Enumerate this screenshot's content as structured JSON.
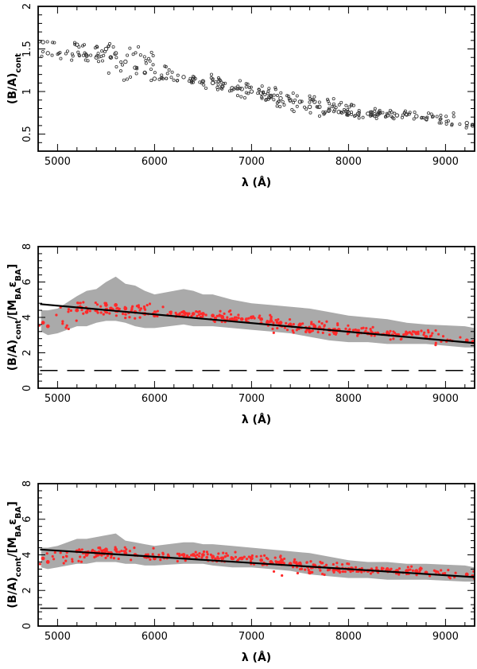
{
  "chart_data": [
    {
      "type": "scatter",
      "xlabel": "λ (Å)",
      "ylabel": "(B/A)cont",
      "ylabel_main": "(B/A)",
      "ylabel_sub": "cont",
      "xlim": [
        4800,
        9300
      ],
      "ylim": [
        0.3,
        2.0
      ],
      "xticks": [
        5000,
        6000,
        7000,
        8000,
        9000
      ],
      "yticks": [
        0.5,
        1,
        1.5,
        2
      ],
      "ytick_labels": [
        "0.5",
        "1",
        "1.5",
        "2"
      ],
      "series": [
        {
          "name": "(B/A)cont",
          "style": "open-circles",
          "color": "#333333",
          "x": [
            4850,
            4900,
            5200,
            5300,
            5400,
            5500,
            5550,
            5600,
            5700,
            5800,
            5900,
            6000,
            6300,
            6400,
            6500,
            6600,
            6700,
            6800,
            6900,
            7000,
            7100,
            7200,
            7300,
            7400,
            7500,
            7600,
            7650,
            7700,
            7800,
            7900,
            8000,
            8100,
            8200,
            8300,
            8400,
            8500,
            8600,
            8700,
            8800,
            9220,
            9280
          ],
          "y": [
            1.58,
            1.45,
            1.55,
            1.42,
            1.4,
            1.5,
            1.4,
            1.45,
            1.35,
            1.28,
            1.22,
            1.15,
            1.17,
            1.14,
            1.12,
            1.1,
            1.06,
            1.04,
            1.03,
            1.0,
            0.98,
            0.95,
            0.92,
            0.9,
            0.88,
            0.82,
            0.88,
            0.82,
            0.78,
            0.76,
            0.75,
            0.74,
            0.74,
            0.73,
            0.72,
            0.72,
            0.73,
            0.71,
            0.68,
            0.63,
            0.6
          ]
        }
      ]
    },
    {
      "type": "scatter",
      "xlabel": "λ (Å)",
      "ylabel": "(B/A)cont/[MBA εBA]",
      "ylabel_main": "(B/A)",
      "ylabel_sub": "cont",
      "ylabel_rest": "/[M",
      "ylabel_sub2": "BA",
      "ylabel_eps": "ε",
      "ylabel_sub3": "BA",
      "ylabel_end": "]",
      "xlim": [
        4800,
        9300
      ],
      "ylim": [
        0,
        8
      ],
      "xticks": [
        5000,
        6000,
        7000,
        8000,
        9000
      ],
      "yticks": [
        0,
        2,
        4,
        6,
        8
      ],
      "ytick_labels": [
        "0",
        "2",
        "4",
        "6",
        "8"
      ],
      "series": [
        {
          "name": "data",
          "style": "red-points",
          "color": "#ff2a2a",
          "x": [
            4850,
            4900,
            5200,
            5300,
            5400,
            5500,
            5550,
            5600,
            5700,
            5800,
            5900,
            6000,
            6300,
            6400,
            6500,
            6600,
            6700,
            6800,
            6900,
            7000,
            7100,
            7200,
            7300,
            7400,
            7500,
            7600,
            7650,
            7700,
            7800,
            7900,
            8000,
            8100,
            8200,
            8300,
            8400,
            8500,
            8600,
            8700,
            8800,
            9220,
            9280
          ],
          "y": [
            3.7,
            3.5,
            4.4,
            4.3,
            4.4,
            4.7,
            4.5,
            4.7,
            4.5,
            4.3,
            4.2,
            4.1,
            4.3,
            4.2,
            4.2,
            4.1,
            4.0,
            3.9,
            3.9,
            4.0,
            3.9,
            3.8,
            3.7,
            3.6,
            3.6,
            3.2,
            3.5,
            3.4,
            3.3,
            3.3,
            3.2,
            3.1,
            3.1,
            3.1,
            3.1,
            3.0,
            3.1,
            3.1,
            2.9,
            2.7,
            2.6
          ]
        },
        {
          "name": "uncertainty band",
          "style": "grey-band",
          "color": "#aaaaaa",
          "x": [
            4830,
            4900,
            5000,
            5200,
            5300,
            5400,
            5500,
            5600,
            5700,
            5800,
            5900,
            6000,
            6300,
            6400,
            6500,
            6600,
            6800,
            7000,
            7200,
            7400,
            7600,
            7800,
            8000,
            8200,
            8400,
            8600,
            8800,
            9200,
            9300
          ],
          "low": [
            3.2,
            3.0,
            3.1,
            3.5,
            3.5,
            3.7,
            3.8,
            3.8,
            3.7,
            3.5,
            3.4,
            3.4,
            3.6,
            3.5,
            3.5,
            3.5,
            3.4,
            3.3,
            3.2,
            3.1,
            2.9,
            2.7,
            2.6,
            2.6,
            2.5,
            2.5,
            2.5,
            2.3,
            2.3
          ],
          "high": [
            4.4,
            4.4,
            4.5,
            5.2,
            5.5,
            5.6,
            6.0,
            6.3,
            5.9,
            5.8,
            5.5,
            5.3,
            5.6,
            5.5,
            5.3,
            5.3,
            5.0,
            4.8,
            4.7,
            4.6,
            4.5,
            4.3,
            4.1,
            4.0,
            3.9,
            3.7,
            3.6,
            3.5,
            3.4
          ]
        },
        {
          "name": "fit",
          "style": "line",
          "color": "#000000",
          "x": [
            4820,
            9300
          ],
          "y": [
            4.75,
            2.55
          ]
        },
        {
          "name": "reference",
          "style": "dashed",
          "color": "#000000",
          "x": [
            4820,
            9300
          ],
          "y": [
            1,
            1
          ]
        }
      ]
    },
    {
      "type": "scatter",
      "xlabel": "λ (Å)",
      "ylabel": "(B/A)cont/[MBA εBA]",
      "ylabel_main": "(B/A)",
      "ylabel_sub": "cont",
      "ylabel_rest": "/[M",
      "ylabel_sub2": "BA",
      "ylabel_eps": "ε",
      "ylabel_sub3": "BA",
      "ylabel_end": "]",
      "xlim": [
        4800,
        9300
      ],
      "ylim": [
        0,
        8
      ],
      "xticks": [
        5000,
        6000,
        7000,
        8000,
        9000
      ],
      "yticks": [
        0,
        2,
        4,
        6,
        8
      ],
      "ytick_labels": [
        "0",
        "2",
        "4",
        "6",
        "8"
      ],
      "series": [
        {
          "name": "data",
          "style": "red-points",
          "color": "#ff2a2a",
          "x": [
            4850,
            4900,
            5200,
            5300,
            5400,
            5500,
            5550,
            5600,
            5700,
            5800,
            5900,
            6000,
            6300,
            6400,
            6500,
            6600,
            6700,
            6800,
            6900,
            7000,
            7100,
            7200,
            7300,
            7400,
            7500,
            7600,
            7650,
            7700,
            7800,
            7900,
            8000,
            8100,
            8200,
            8300,
            8400,
            8500,
            8600,
            8700,
            8800,
            9220,
            9280
          ],
          "y": [
            3.8,
            3.6,
            4.2,
            4.0,
            4.1,
            4.3,
            4.1,
            4.3,
            4.1,
            4.0,
            3.9,
            3.8,
            4.0,
            4.0,
            4.0,
            3.9,
            3.8,
            3.8,
            3.8,
            3.8,
            3.7,
            3.6,
            3.6,
            3.5,
            3.5,
            3.0,
            3.4,
            3.3,
            3.2,
            3.2,
            3.2,
            3.1,
            3.1,
            3.1,
            3.2,
            3.1,
            3.1,
            3.1,
            3.0,
            2.9,
            2.8
          ]
        },
        {
          "name": "uncertainty band",
          "style": "grey-band",
          "color": "#aaaaaa",
          "x": [
            4830,
            4900,
            5000,
            5200,
            5300,
            5400,
            5500,
            5600,
            5700,
            5800,
            5900,
            6000,
            6300,
            6400,
            6500,
            6600,
            6800,
            7000,
            7200,
            7400,
            7600,
            7800,
            8000,
            8200,
            8400,
            8600,
            8800,
            9200,
            9300
          ],
          "low": [
            3.3,
            3.2,
            3.3,
            3.5,
            3.5,
            3.6,
            3.6,
            3.6,
            3.5,
            3.5,
            3.4,
            3.4,
            3.5,
            3.5,
            3.5,
            3.4,
            3.3,
            3.3,
            3.2,
            3.1,
            2.9,
            2.8,
            2.7,
            2.7,
            2.6,
            2.6,
            2.6,
            2.5,
            2.5
          ],
          "high": [
            4.4,
            4.4,
            4.5,
            4.9,
            4.9,
            5.0,
            5.1,
            5.2,
            4.8,
            4.7,
            4.6,
            4.5,
            4.7,
            4.7,
            4.6,
            4.6,
            4.5,
            4.4,
            4.3,
            4.2,
            4.1,
            3.9,
            3.7,
            3.6,
            3.6,
            3.5,
            3.5,
            3.4,
            3.3
          ]
        },
        {
          "name": "fit",
          "style": "line",
          "color": "#000000",
          "x": [
            4820,
            9300
          ],
          "y": [
            4.3,
            2.75
          ]
        },
        {
          "name": "reference",
          "style": "dashed",
          "color": "#000000",
          "x": [
            4820,
            9300
          ],
          "y": [
            1,
            1
          ]
        }
      ]
    }
  ]
}
